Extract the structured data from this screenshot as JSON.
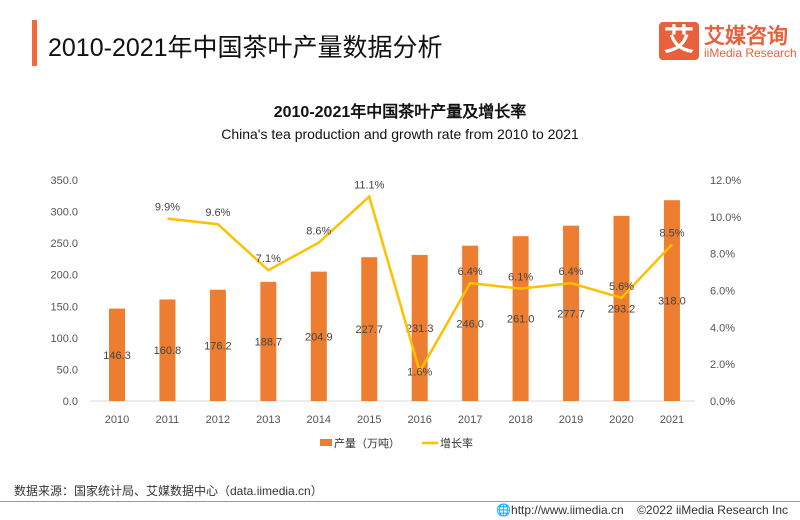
{
  "header": {
    "title": "2010-2021年中国茶叶产量数据分析",
    "logo_cn": "艾媒咨询",
    "logo_en": "iiMedia Research",
    "logo_mark": "艾"
  },
  "chart_data": {
    "type": "bar+line",
    "title": "2010-2021年中国茶叶产量及增长率",
    "subtitle": "China's tea production and growth rate from 2010 to 2021",
    "categories": [
      "2010",
      "2011",
      "2012",
      "2013",
      "2014",
      "2015",
      "2016",
      "2017",
      "2018",
      "2019",
      "2020",
      "2021"
    ],
    "series": [
      {
        "name": "产量（万吨）",
        "type": "bar",
        "axis": "left",
        "color": "#ed7d31",
        "values": [
          146.3,
          160.8,
          176.2,
          188.7,
          204.9,
          227.7,
          231.3,
          246.0,
          261.0,
          277.7,
          293.2,
          318.0
        ]
      },
      {
        "name": "增长率",
        "type": "line",
        "axis": "right",
        "color": "#ffc000",
        "values": [
          null,
          9.9,
          9.6,
          7.1,
          8.6,
          11.1,
          1.6,
          6.4,
          6.1,
          6.4,
          5.6,
          8.5
        ]
      }
    ],
    "ylim_left": [
      0,
      350
    ],
    "yticks_left": [
      "0.0",
      "50.0",
      "100.0",
      "150.0",
      "200.0",
      "250.0",
      "300.0",
      "350.0"
    ],
    "ylim_right": [
      0,
      12
    ],
    "yticks_right": [
      "0.0%",
      "2.0%",
      "4.0%",
      "6.0%",
      "8.0%",
      "10.0%",
      "12.0%"
    ],
    "grid": false,
    "legend": "bottom"
  },
  "footer": {
    "source": "数据来源：国家统计局、艾媒数据中心（data.iimedia.cn）",
    "url": "http://www.iimedia.cn",
    "copyright": "©2022  iiMedia Research  Inc"
  }
}
